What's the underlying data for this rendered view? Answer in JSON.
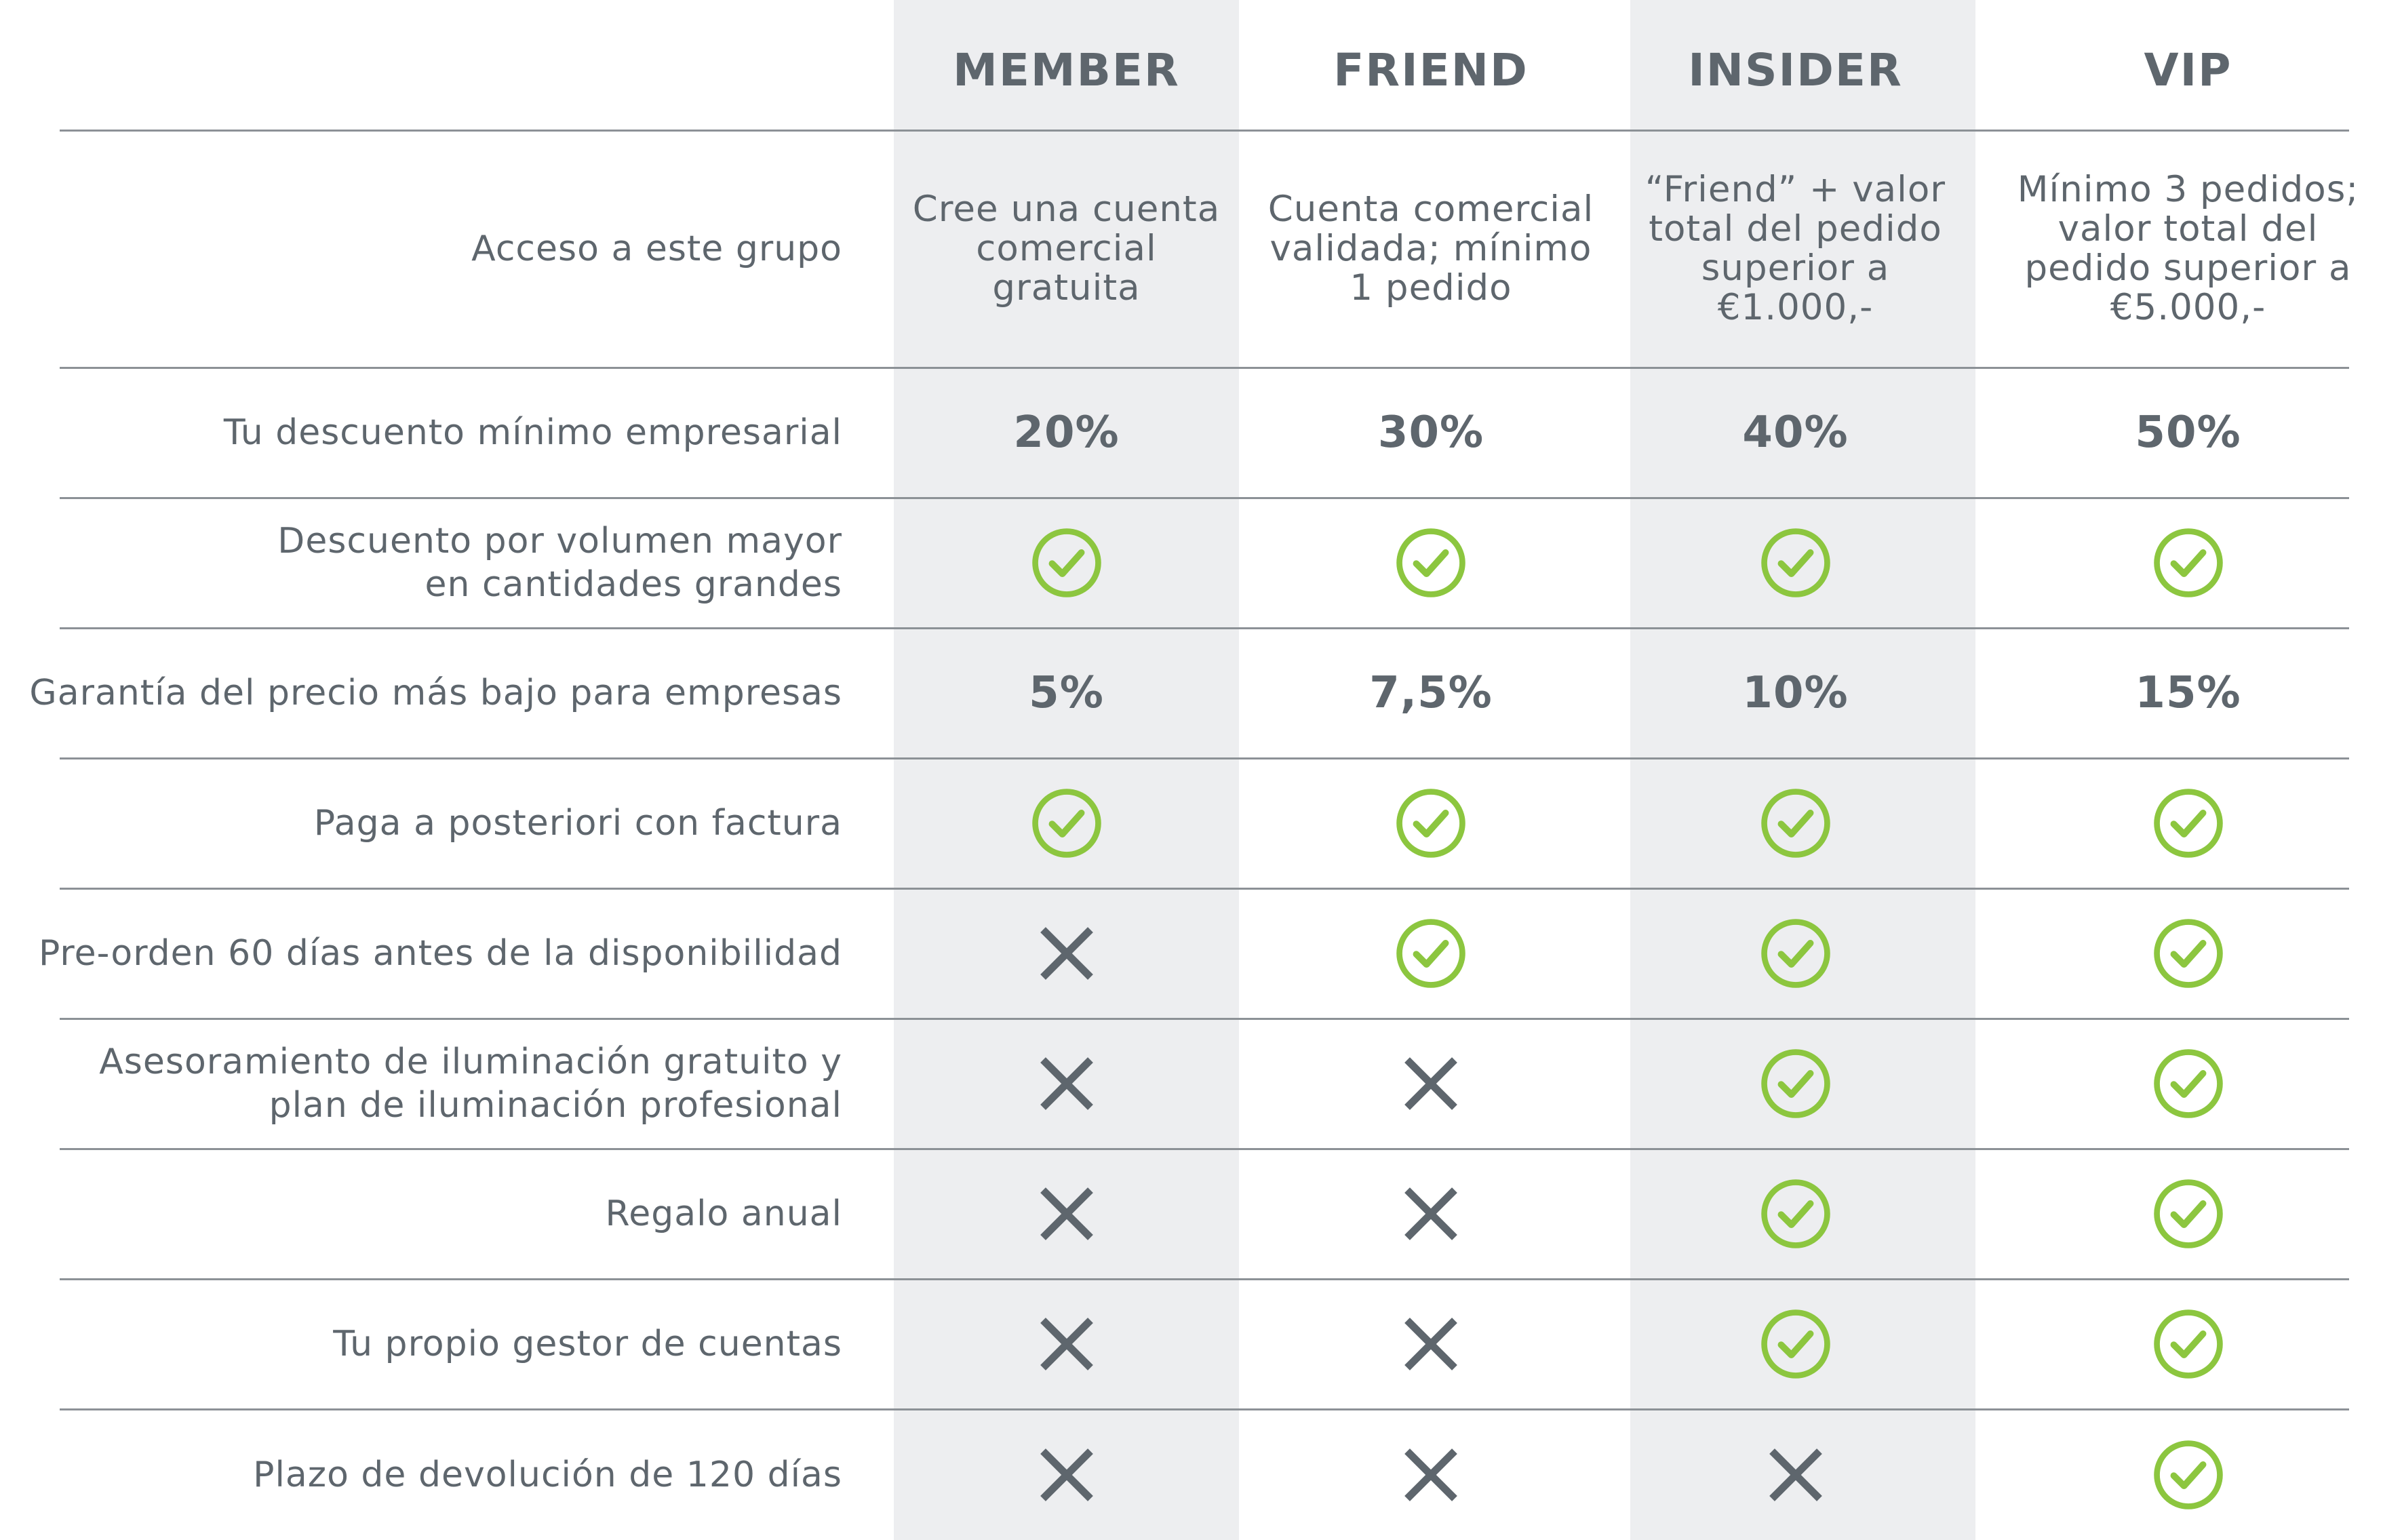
{
  "header": {
    "columns": [
      "MEMBER",
      "FRIEND",
      "INSIDER",
      "VIP"
    ]
  },
  "rows": [
    {
      "label": [
        "Acceso a este grupo"
      ],
      "kind": "text",
      "values": [
        [
          "Cree una cuenta",
          "comercial",
          "gratuita"
        ],
        [
          "Cuenta comercial",
          "validada; mínimo",
          "1 pedido"
        ],
        [
          "“Friend” + valor",
          "total del pedido",
          "superior a",
          "€1.000,-"
        ],
        [
          "Mínimo 3 pedidos;",
          "valor total del",
          "pedido superior a",
          "€5.000,-"
        ]
      ]
    },
    {
      "label": [
        "Tu descuento mínimo empresarial"
      ],
      "kind": "pct",
      "values": [
        "20%",
        "30%",
        "40%",
        "50%"
      ]
    },
    {
      "label": [
        "Descuento por volumen mayor",
        "en cantidades grandes"
      ],
      "kind": "icon",
      "values": [
        "check",
        "check",
        "check",
        "check"
      ]
    },
    {
      "label": [
        "Garantía del precio más bajo para empresas"
      ],
      "kind": "pct",
      "values": [
        "5%",
        "7,5%",
        "10%",
        "15%"
      ]
    },
    {
      "label": [
        "Paga a posteriori con factura"
      ],
      "kind": "icon",
      "values": [
        "check",
        "check",
        "check",
        "check"
      ]
    },
    {
      "label": [
        "Pre-orden 60 días antes de la disponibilidad"
      ],
      "kind": "icon",
      "values": [
        "cross",
        "check",
        "check",
        "check"
      ]
    },
    {
      "label": [
        "Asesoramiento de iluminación gratuito y",
        "plan de iluminación profesional"
      ],
      "kind": "icon",
      "values": [
        "cross",
        "cross",
        "check",
        "check"
      ]
    },
    {
      "label": [
        "Regalo anual"
      ],
      "kind": "icon",
      "values": [
        "cross",
        "cross",
        "check",
        "check"
      ]
    },
    {
      "label": [
        "Tu propio gestor de cuentas"
      ],
      "kind": "icon",
      "values": [
        "cross",
        "cross",
        "check",
        "check"
      ]
    },
    {
      "label": [
        "Plazo de devolución de 120 días"
      ],
      "kind": "icon",
      "values": [
        "cross",
        "cross",
        "cross",
        "check"
      ]
    }
  ],
  "colors": {
    "check": "#8cc63f",
    "cross": "#5e666d",
    "text": "#5e666d",
    "column_shade": "#edeef0",
    "rule": "#8c9196"
  }
}
